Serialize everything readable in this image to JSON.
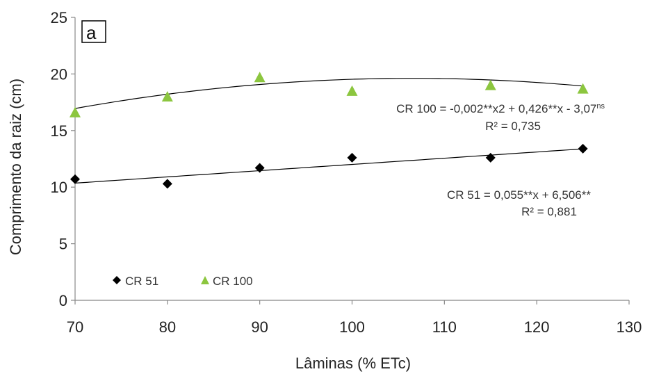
{
  "chart_data": {
    "type": "scatter",
    "panel_label": "a",
    "xlabel": "Lâminas  (% ETc)",
    "ylabel": "Comprimento da raiz (cm)",
    "xlim": [
      70,
      130
    ],
    "ylim": [
      0,
      25
    ],
    "x_ticks": [
      "70",
      "80",
      "90",
      "100",
      "110",
      "120",
      "130"
    ],
    "y_ticks": [
      "0",
      "5",
      "10",
      "15",
      "20",
      "25"
    ],
    "grid": false,
    "legend_position": "bottom-left",
    "series": [
      {
        "name": "CR 51",
        "marker": "diamond",
        "color": "#000000",
        "x": [
          70,
          80,
          90,
          100,
          115,
          125
        ],
        "y": [
          10.7,
          10.3,
          11.7,
          12.6,
          12.6,
          13.4
        ],
        "trend": {
          "kind": "linear",
          "a": 0.055,
          "b": 6.506
        }
      },
      {
        "name": "CR 100",
        "marker": "triangle",
        "color": "#8cc63f",
        "x": [
          70,
          80,
          90,
          100,
          115,
          125
        ],
        "y": [
          16.6,
          18.0,
          19.7,
          18.5,
          19.0,
          18.7
        ],
        "trend": {
          "kind": "quadratic",
          "a": -0.002,
          "b": 0.426,
          "c": -3.07
        }
      }
    ],
    "annotations": {
      "cr100_eq_main": "CR 100 = -0,002**x2 + 0,426**x - 3,07",
      "cr100_eq_sup": "ns",
      "cr100_r2": "R² = 0,735",
      "cr51_eq": "CR 51 = 0,055**x + 6,506**",
      "cr51_r2": "R² = 0,881"
    }
  }
}
